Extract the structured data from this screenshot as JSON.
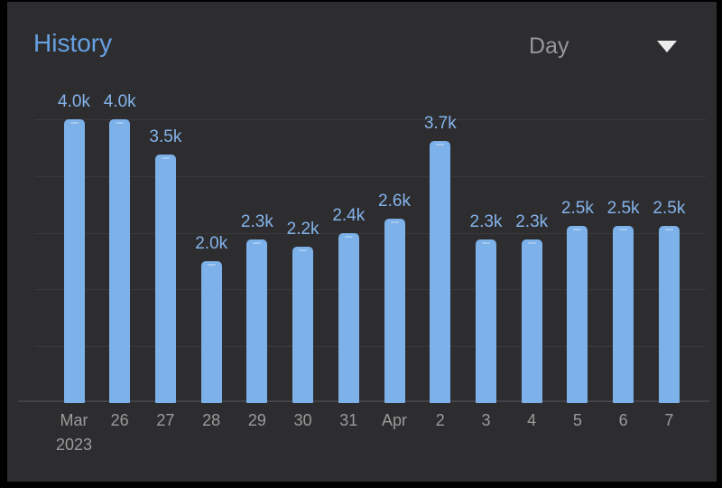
{
  "header": {
    "title": "History",
    "period_selector": {
      "value": "Day"
    }
  },
  "colors": {
    "frame": "#000000",
    "bg": "#2d2d30",
    "title": "#66a1e2",
    "periodText": "#98989b",
    "caret": "#ececec",
    "bar": "#7cb1ea",
    "barHl": "#a5c9f1",
    "valueLabel": "#84b3ea",
    "axisLabel": "#9b9b9b",
    "grid": "#3a3a3d",
    "baseline": "#424246"
  },
  "chart_data": {
    "type": "bar",
    "title": "History",
    "period": "Day",
    "categories": [
      "Mar\n2023",
      "26",
      "27",
      "28",
      "29",
      "30",
      "31",
      "Apr",
      "2",
      "3",
      "4",
      "5",
      "6",
      "7"
    ],
    "values": [
      4000,
      4000,
      3500,
      2000,
      2300,
      2200,
      2400,
      2600,
      3700,
      2300,
      2300,
      2500,
      2500,
      2500
    ],
    "value_labels": [
      "4.0k",
      "4.0k",
      "3.5k",
      "2.0k",
      "2.3k",
      "2.2k",
      "2.4k",
      "2.6k",
      "3.7k",
      "2.3k",
      "2.3k",
      "2.5k",
      "2.5k",
      "2.5k"
    ],
    "xlabel": "",
    "ylabel": "",
    "ylim": [
      0,
      4000
    ],
    "gridline_values": [
      800,
      1600,
      2400,
      3200,
      4000
    ],
    "grid": true,
    "legend": false
  }
}
